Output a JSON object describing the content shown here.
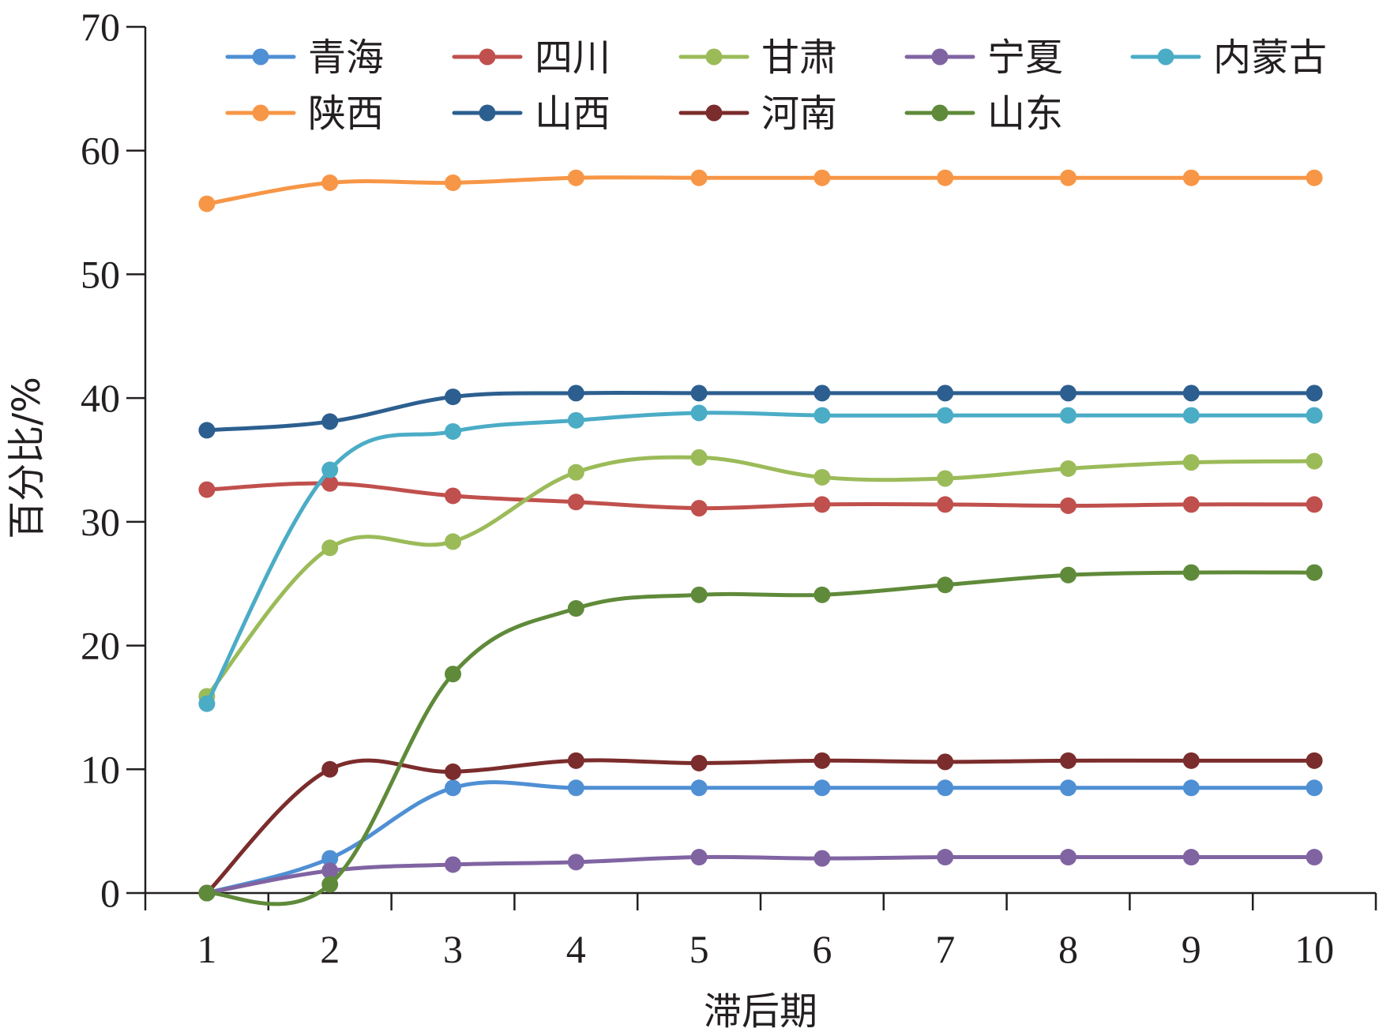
{
  "chart_data": {
    "type": "line",
    "xlabel": "滞后期",
    "ylabel": "百分比/%",
    "x": [
      1,
      2,
      3,
      4,
      5,
      6,
      7,
      8,
      9,
      10
    ],
    "xticks": [
      "1",
      "2",
      "3",
      "4",
      "5",
      "6",
      "7",
      "8",
      "9",
      "10"
    ],
    "yticks": [
      "0",
      "10",
      "20",
      "30",
      "40",
      "50",
      "60",
      "70"
    ],
    "ylim": [
      0,
      70
    ],
    "xlim": [
      0.5,
      10.5
    ],
    "grid": false,
    "legend": "top, 2 rows",
    "smooth": true,
    "series": [
      {
        "name": "青海",
        "color": "#4f8fd4",
        "values": [
          0,
          2.8,
          8.5,
          8.5,
          8.5,
          8.5,
          8.5,
          8.5,
          8.5,
          8.5
        ]
      },
      {
        "name": "四川",
        "color": "#c0504d",
        "values": [
          32.6,
          33.1,
          32.1,
          31.6,
          31.1,
          31.4,
          31.4,
          31.3,
          31.4,
          31.4
        ]
      },
      {
        "name": "甘肃",
        "color": "#9bbb59",
        "values": [
          15.9,
          27.9,
          28.4,
          34.0,
          35.2,
          33.6,
          33.5,
          34.3,
          34.8,
          34.9
        ]
      },
      {
        "name": "宁夏",
        "color": "#8064a2",
        "values": [
          0,
          1.8,
          2.3,
          2.5,
          2.9,
          2.8,
          2.9,
          2.9,
          2.9,
          2.9
        ]
      },
      {
        "name": "内蒙古",
        "color": "#4bacc6",
        "values": [
          15.3,
          34.2,
          37.3,
          38.2,
          38.8,
          38.6,
          38.6,
          38.6,
          38.6,
          38.6
        ]
      },
      {
        "name": "陕西",
        "color": "#f79646",
        "values": [
          55.7,
          57.4,
          57.4,
          57.8,
          57.8,
          57.8,
          57.8,
          57.8,
          57.8,
          57.8
        ]
      },
      {
        "name": "山西",
        "color": "#2c5f8f",
        "values": [
          37.4,
          38.1,
          40.1,
          40.4,
          40.4,
          40.4,
          40.4,
          40.4,
          40.4,
          40.4
        ]
      },
      {
        "name": "河南",
        "color": "#7b2c2c",
        "values": [
          0,
          10.0,
          9.8,
          10.7,
          10.5,
          10.7,
          10.6,
          10.7,
          10.7,
          10.7
        ]
      },
      {
        "name": "山东",
        "color": "#5f8a3a",
        "values": [
          0,
          0.7,
          17.7,
          23.0,
          24.1,
          24.1,
          24.9,
          25.7,
          25.9,
          25.9
        ]
      }
    ]
  }
}
